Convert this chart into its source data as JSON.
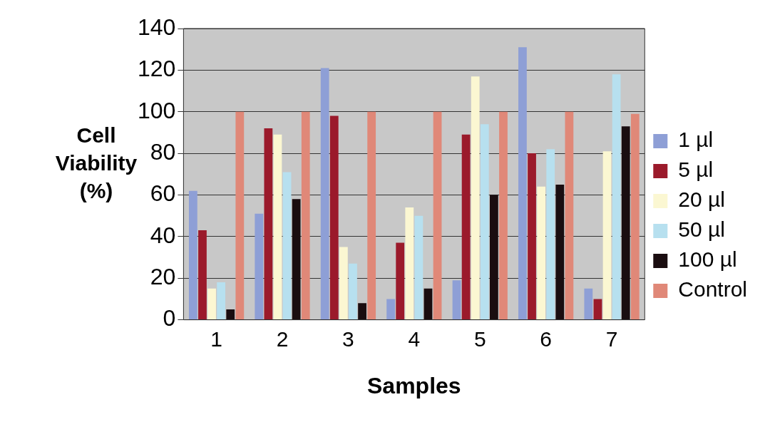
{
  "chart_data": {
    "type": "bar",
    "xlabel": "Samples",
    "ylabel": "Cell Viability (%)",
    "categories": [
      "1",
      "2",
      "3",
      "4",
      "5",
      "6",
      "7"
    ],
    "series": [
      {
        "name": "1 µl",
        "color": "#8e9fd6",
        "values": [
          62,
          51,
          121,
          10,
          19,
          131,
          15
        ]
      },
      {
        "name": "5 µl",
        "color": "#9b1a2b",
        "values": [
          43,
          92,
          98,
          37,
          89,
          80,
          10
        ]
      },
      {
        "name": "20 µl",
        "color": "#fbf7d2",
        "values": [
          15,
          89,
          35,
          54,
          117,
          64,
          81
        ]
      },
      {
        "name": "50 µl",
        "color": "#b7e0ef",
        "values": [
          18,
          71,
          27,
          50,
          94,
          82,
          118
        ]
      },
      {
        "name": "100 µl",
        "color": "#1a0d10",
        "values": [
          5,
          58,
          8,
          15,
          60,
          65,
          93
        ]
      },
      {
        "name": "Control",
        "color": "#e08878",
        "values": [
          100,
          100,
          100,
          100,
          100,
          100,
          99
        ]
      }
    ],
    "ylim": [
      0,
      140
    ],
    "yticks": [
      0,
      20,
      40,
      60,
      80,
      100,
      120,
      140
    ],
    "grid": "y",
    "legend": "right"
  }
}
